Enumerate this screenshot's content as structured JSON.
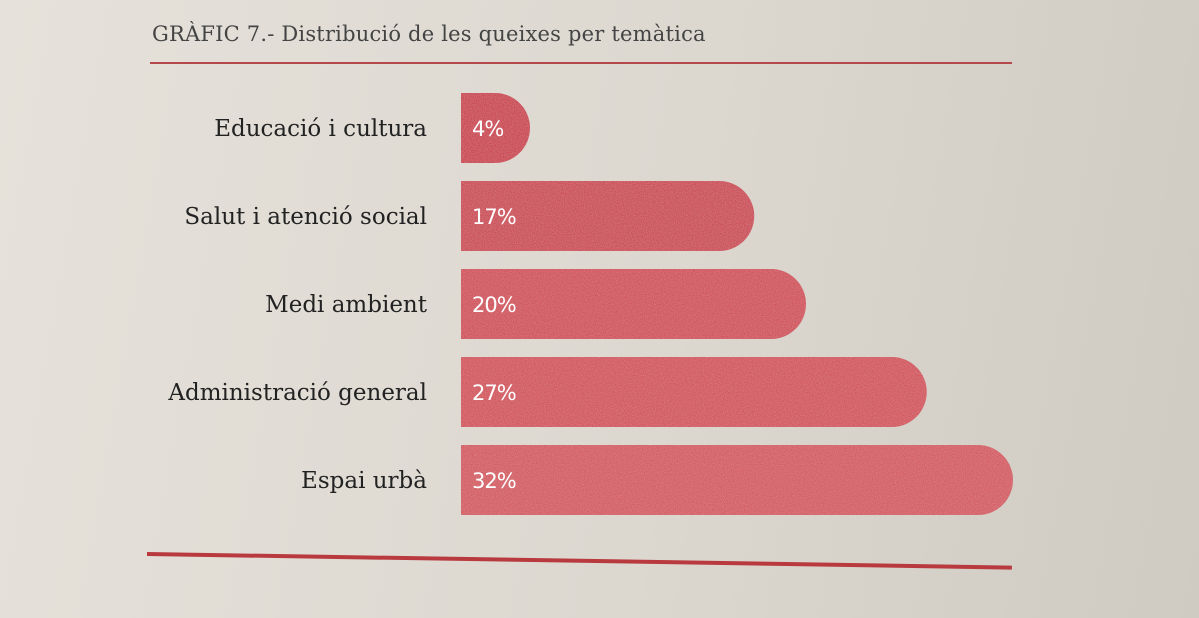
{
  "chart_data": {
    "type": "bar",
    "orientation": "horizontal",
    "title": "GRÀFIC 7.- Distribució de les queixes per temàtica",
    "categories": [
      "Educació i cultura",
      "Salut i atenció social",
      "Medi ambient",
      "Administració general",
      "Espai urbà"
    ],
    "values": [
      4,
      17,
      20,
      27,
      32
    ],
    "value_labels": [
      "4%",
      "17%",
      "20%",
      "27%",
      "32%"
    ],
    "unit": "%",
    "xlim": [
      0,
      32
    ],
    "grid": false,
    "legend": "none",
    "bar_colors": [
      "#c8263a",
      "#c93142",
      "#cf3a48",
      "#d0404c",
      "#d24a52"
    ]
  }
}
